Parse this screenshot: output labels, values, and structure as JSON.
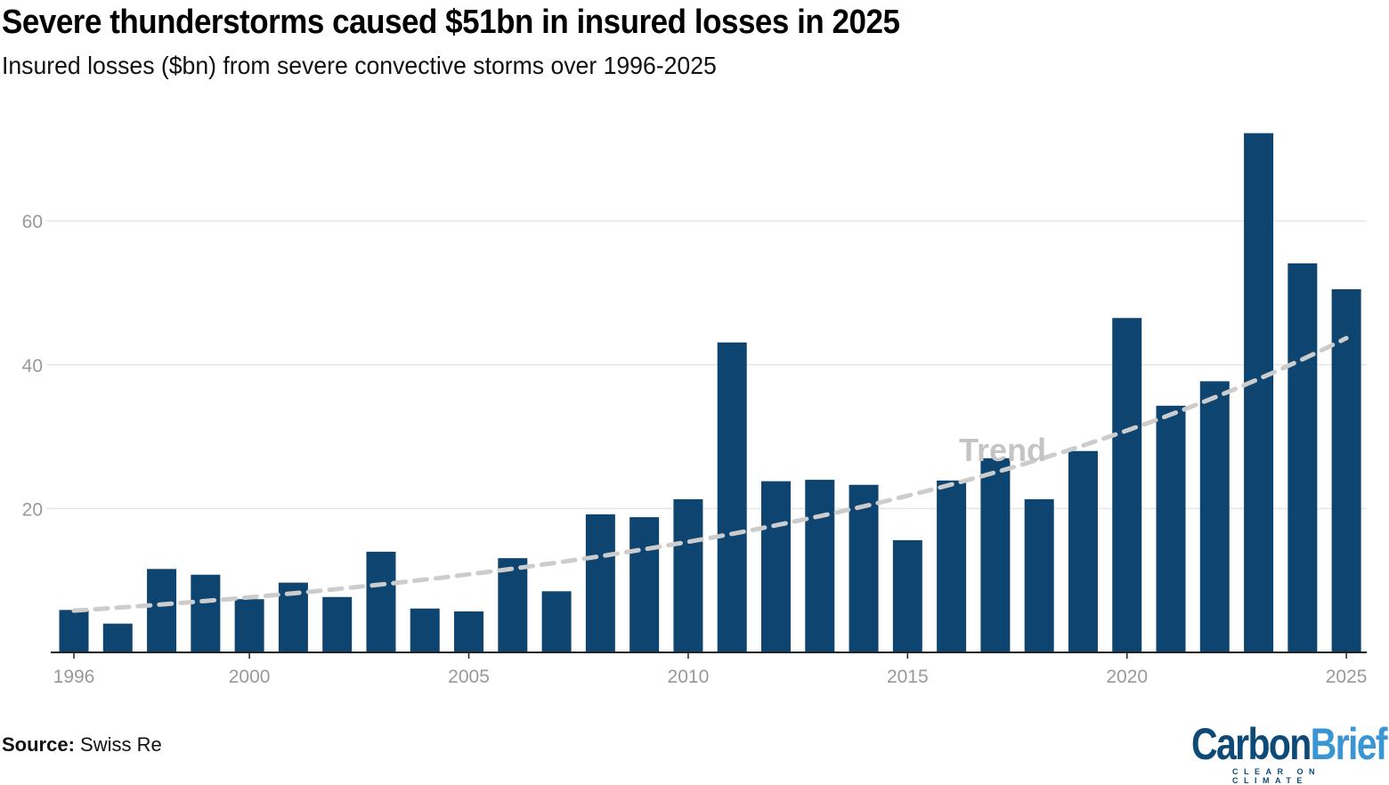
{
  "title": "Severe thunderstorms caused $51bn in insured losses in 2025",
  "subtitle": "Insured losses ($bn) from severe convective storms over 1996-2025",
  "source_label": "Source:",
  "source_value": "Swiss Re",
  "logo": {
    "text_primary": "Carbon",
    "text_secondary": "Brief",
    "tagline": "CLEAR ON CLIMATE"
  },
  "chart_data": {
    "type": "bar",
    "title": "",
    "xlabel": "",
    "ylabel": "",
    "ylim": [
      0,
      75
    ],
    "grid": true,
    "y_ticks": [
      20,
      40,
      60
    ],
    "x_ticks": [
      1996,
      2000,
      2005,
      2010,
      2015,
      2020,
      2025
    ],
    "bar_color": "#0e4570",
    "categories": [
      1996,
      1997,
      1998,
      1999,
      2000,
      2001,
      2002,
      2003,
      2004,
      2005,
      2006,
      2007,
      2008,
      2009,
      2010,
      2011,
      2012,
      2013,
      2014,
      2015,
      2016,
      2017,
      2018,
      2019,
      2020,
      2021,
      2022,
      2023,
      2024,
      2025
    ],
    "values": [
      5.9,
      4.0,
      11.6,
      10.8,
      7.4,
      9.7,
      7.7,
      14.0,
      6.1,
      5.7,
      13.1,
      8.5,
      19.2,
      18.8,
      21.3,
      43.1,
      23.8,
      24.0,
      23.3,
      15.6,
      23.9,
      27.0,
      21.3,
      28.0,
      46.5,
      34.3,
      37.7,
      72.2,
      54.1,
      50.5
    ],
    "trend": {
      "label": "Trend",
      "type": "exponential",
      "x": [
        1996,
        2025
      ],
      "y": [
        5.8,
        43.7
      ],
      "color": "#cccccc"
    }
  }
}
